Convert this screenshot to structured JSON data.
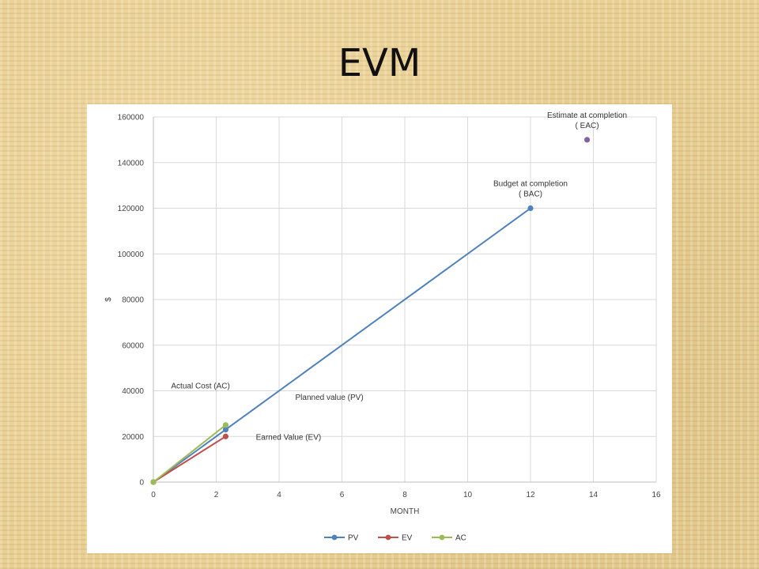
{
  "slide": {
    "title": "EVM"
  },
  "chart_data": {
    "type": "scatter",
    "xlabel": "MONTH",
    "ylabel": "$",
    "xlim": [
      0,
      16
    ],
    "ylim": [
      0,
      160000
    ],
    "xticks": [
      0,
      2,
      4,
      6,
      8,
      10,
      12,
      14,
      16
    ],
    "yticks": [
      0,
      20000,
      40000,
      60000,
      80000,
      100000,
      120000,
      140000,
      160000
    ],
    "grid": true,
    "legend": "bottom",
    "series": [
      {
        "name": "PV",
        "color": "#4f81bd",
        "points": [
          [
            0,
            0
          ],
          [
            2.3,
            23000
          ],
          [
            12,
            120000
          ]
        ]
      },
      {
        "name": "EV",
        "color": "#c0504d",
        "points": [
          [
            0,
            0
          ],
          [
            2.3,
            20000
          ]
        ]
      },
      {
        "name": "AC",
        "color": "#9bbb59",
        "points": [
          [
            0,
            0
          ],
          [
            2.3,
            25000
          ]
        ]
      },
      {
        "name": "",
        "color": "#8064a2",
        "points": [
          [
            13.8,
            150000
          ]
        ],
        "show_in_legend": false
      }
    ],
    "annotations": [
      {
        "lines": [
          "Estimate at completion",
          "( EAC)"
        ],
        "x": 13.8,
        "y": 150000
      },
      {
        "lines": [
          "Budget  at completion",
          "( BAC)"
        ],
        "x": 12,
        "y": 120000
      },
      {
        "lines": [
          "Actual Cost (AC)"
        ],
        "x": 1.5,
        "y": 41000
      },
      {
        "lines": [
          "Planned value (PV)"
        ],
        "x": 5.6,
        "y": 36000
      },
      {
        "lines": [
          "Earned Value (EV)"
        ],
        "x": 4.3,
        "y": 18500
      }
    ]
  }
}
